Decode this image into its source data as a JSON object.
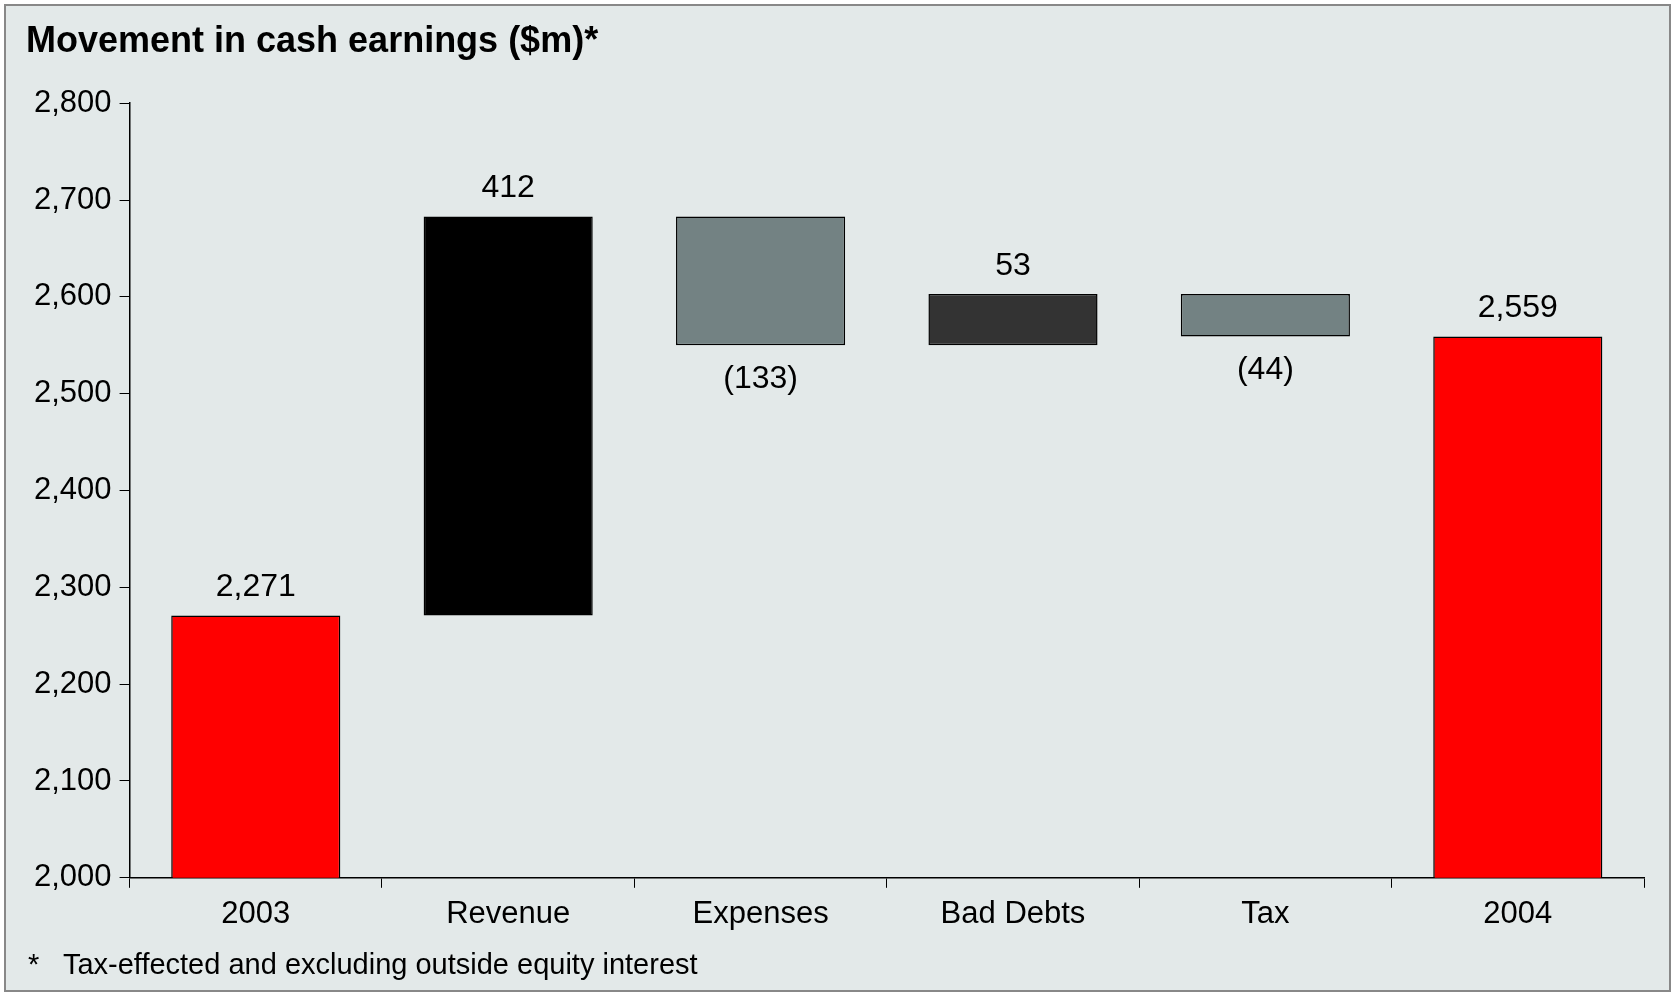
{
  "chart_data": {
    "type": "bar",
    "title": "Movement in cash earnings ($m)*",
    "categories": [
      "2003",
      "Revenue",
      "Expenses",
      "Bad Debts",
      "Tax",
      "2004"
    ],
    "values": [
      2271,
      412,
      -133,
      53,
      -44,
      2559
    ],
    "base": [
      0,
      2271,
      2683,
      2550,
      2603,
      0
    ],
    "colors": [
      "#ff0000",
      "#000000",
      "#738283",
      "#333333",
      "#738283",
      "#ff0000"
    ],
    "value_labels": [
      "2,271",
      "412",
      "(133)",
      "53",
      "(44)",
      "2,559"
    ],
    "ylim": [
      2000,
      2800
    ],
    "yticks": [
      {
        "value": 2000,
        "label": "2,000"
      },
      {
        "value": 2100,
        "label": "2,100"
      },
      {
        "value": 2200,
        "label": "2,200"
      },
      {
        "value": 2300,
        "label": "2,300"
      },
      {
        "value": 2400,
        "label": "2,400"
      },
      {
        "value": 2500,
        "label": "2,500"
      },
      {
        "value": 2600,
        "label": "2,600"
      },
      {
        "value": 2700,
        "label": "2,700"
      },
      {
        "value": 2800,
        "label": "2,800"
      }
    ],
    "grid": false,
    "annotations": [
      "*   Tax-effected and excluding outside equity interest"
    ]
  }
}
